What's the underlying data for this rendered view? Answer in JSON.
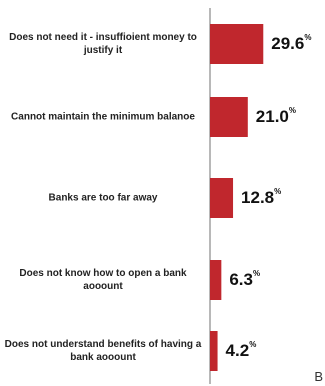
{
  "chart_data": {
    "type": "bar",
    "orientation": "horizontal",
    "categories": [
      "Does not need it - insuffioient money to justify it",
      "Cannot maintain the minimum balanoe",
      "Banks are too far away",
      "Does not know how to open a bank aooount",
      "Does not understand benefits of having a bank aooount"
    ],
    "values": [
      29.6,
      21.0,
      12.8,
      6.3,
      4.2
    ],
    "value_labels": [
      "29.6",
      "21.0",
      "12.8",
      "6.3",
      "4.2"
    ],
    "unit": "%",
    "xlim": [
      0,
      30
    ],
    "grid": false,
    "legend": "none",
    "bar_color": "#c0272d",
    "axis_color": "#888888"
  },
  "corner_letter": "B"
}
